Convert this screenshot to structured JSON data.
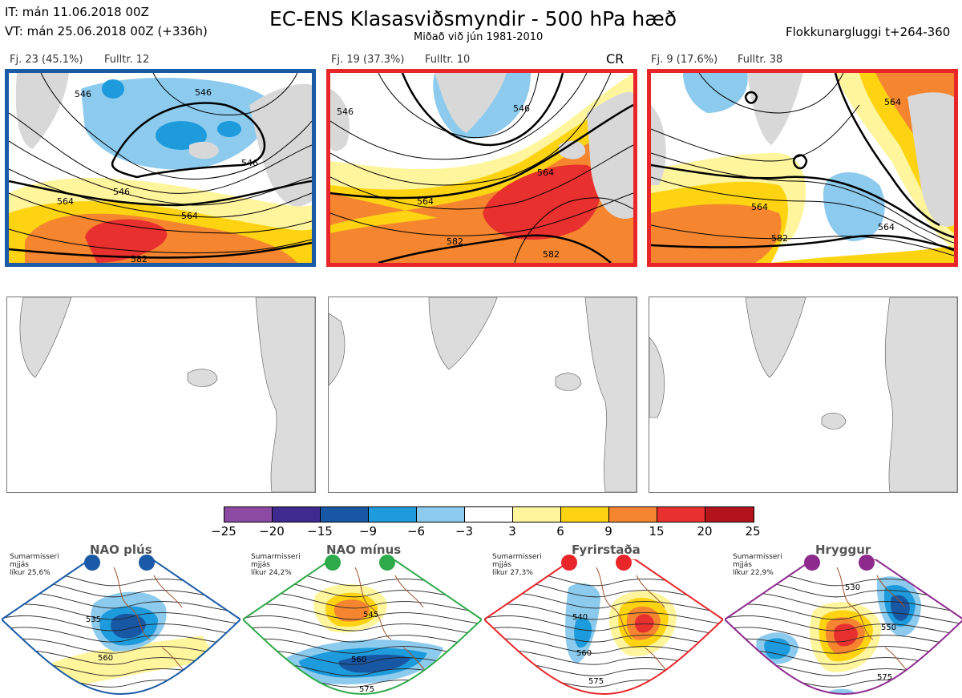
{
  "header": {
    "it_line": "IT: mán 11.06.2018 00Z",
    "vt_line": "VT: mán 25.06.2018 00Z  (+336h)",
    "title": "EC-ENS Klasasviðsmyndir - 500 hPa hæð",
    "subtitle": "Miðað við jún 1981-2010",
    "window": "Flokkunargluggi t+264-360"
  },
  "clusters": [
    {
      "label": "Fj. 23 (45.1%)",
      "representative": "Fulltr. 12",
      "contours": [
        "546",
        "546",
        "564",
        "564",
        "582",
        "546",
        "546"
      ],
      "border_color": "#1a5aa6",
      "regime": ""
    },
    {
      "label": "Fj. 19 (37.3%)",
      "representative": "Fulltr. 10",
      "contours": [
        "546",
        "564",
        "564",
        "582",
        "582",
        "546"
      ],
      "border_color": "#e8262a",
      "regime": "CR"
    },
    {
      "label": "Fj. 9 (17.6%)",
      "representative": "Fulltr. 38",
      "contours": [
        "564",
        "564",
        "564",
        "582"
      ],
      "border_color": "#e8262a",
      "regime": ""
    }
  ],
  "colorbar": {
    "ticks": [
      "−25",
      "−20",
      "−15",
      "−9",
      "−6",
      "−3",
      "3",
      "6",
      "9",
      "15",
      "20",
      "25"
    ],
    "colors": [
      "#8c4aa3",
      "#3f2a8f",
      "#1757a3",
      "#1e9bdc",
      "#8ccbee",
      "#ffffff",
      "#fff59c",
      "#fdd312",
      "#f5862f",
      "#e8302e",
      "#b3141c"
    ]
  },
  "regimes": [
    {
      "name": "NAO plús",
      "season": "Sumarmisseri",
      "period": "mjjás",
      "likelihood": "líkur 25,6%",
      "color": "#1a5aa6",
      "contours": [
        "535",
        "560"
      ]
    },
    {
      "name": "NAO mínus",
      "season": "Sumarmisseri",
      "period": "mjjás",
      "likelihood": "líkur 24,2%",
      "color": "#2eaa4a",
      "contours": [
        "545",
        "560",
        "575"
      ]
    },
    {
      "name": "Fyrirstaða",
      "season": "Sumarmisseri",
      "period": "mjjás",
      "likelihood": "líkur 27,3%",
      "color": "#e8262a",
      "contours": [
        "540",
        "560",
        "575"
      ]
    },
    {
      "name": "Hryggur",
      "season": "Sumarmisseri",
      "period": "mjjás",
      "likelihood": "líkur 22,9%",
      "color": "#8e2a8e",
      "contours": [
        "530",
        "550",
        "575"
      ]
    }
  ]
}
